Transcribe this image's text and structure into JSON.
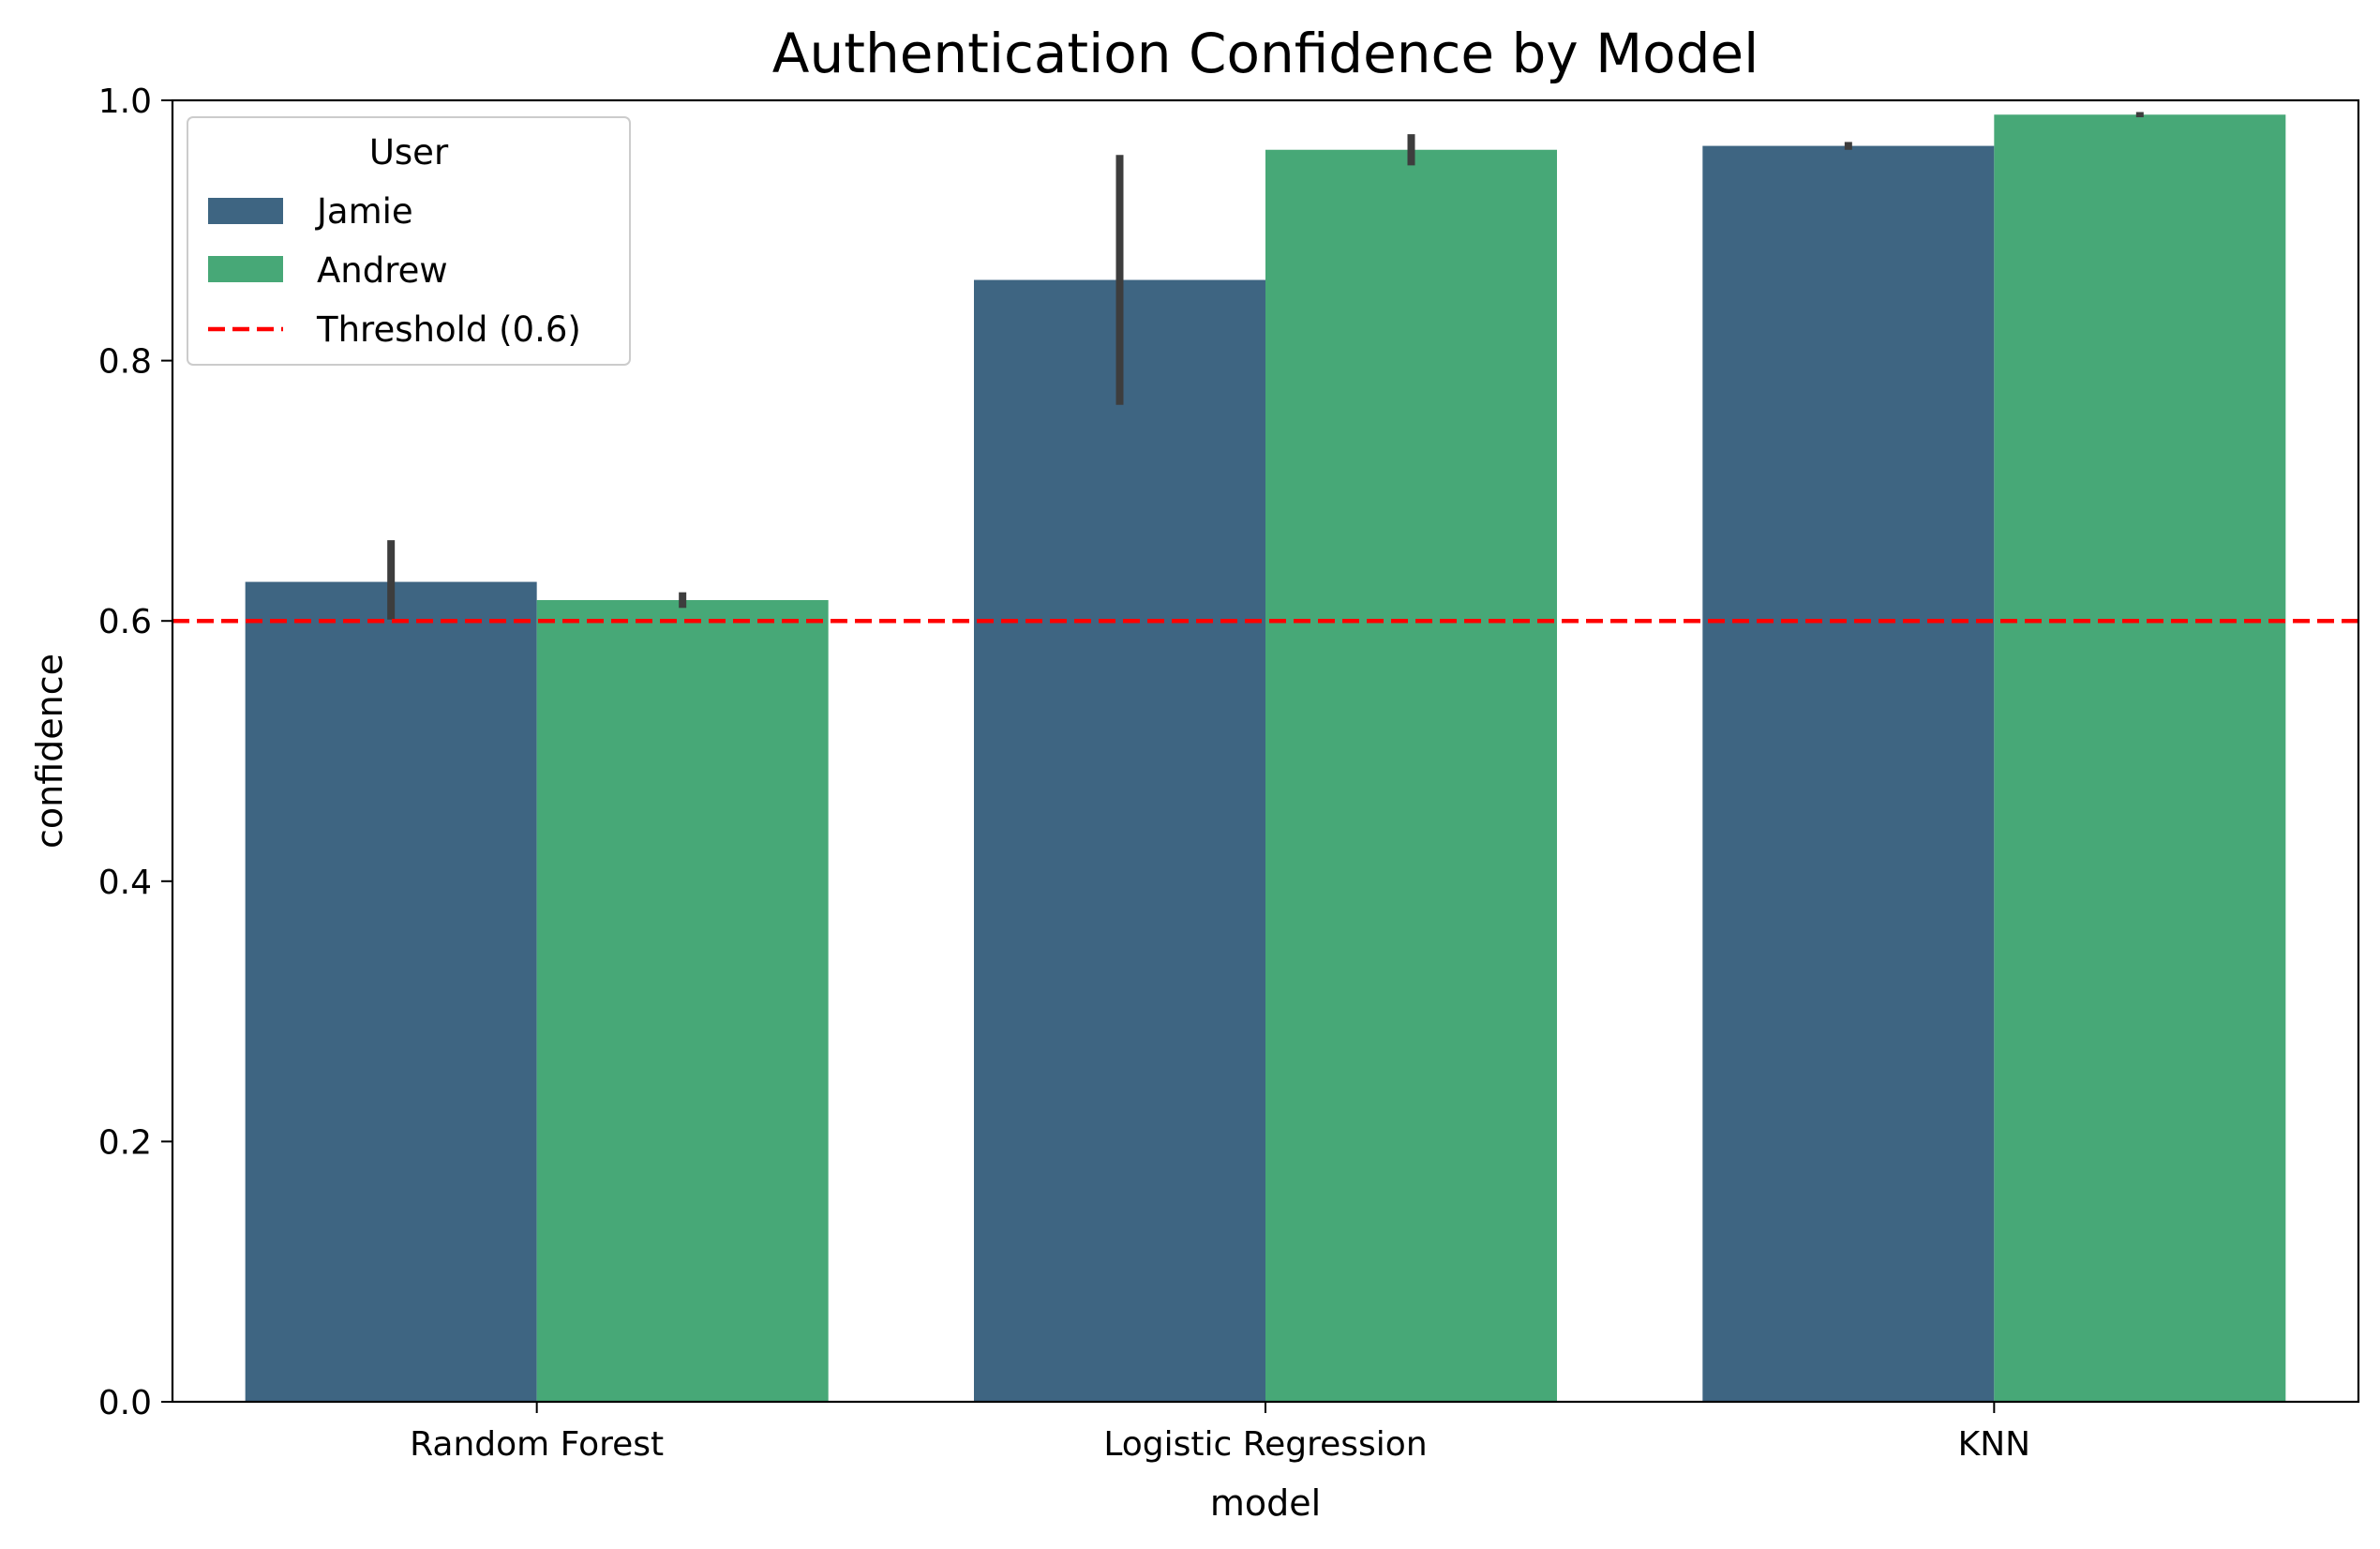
{
  "chart_data": {
    "type": "bar",
    "title": "Authentication Confidence by Model",
    "xlabel": "model",
    "ylabel": "confidence",
    "categories": [
      "Random Forest",
      "Logistic Regression",
      "KNN"
    ],
    "ylim": [
      0,
      1.0
    ],
    "yticks": [
      "0.0",
      "0.2",
      "0.4",
      "0.6",
      "0.8",
      "1.0"
    ],
    "series": [
      {
        "name": "Jamie",
        "color": "#3e6582",
        "values": [
          0.63,
          0.862,
          0.965
        ],
        "err_low": [
          0.601,
          0.766,
          0.962
        ],
        "err_high": [
          0.662,
          0.958,
          0.968
        ]
      },
      {
        "name": "Andrew",
        "color": "#47a877",
        "values": [
          0.616,
          0.962,
          0.989
        ],
        "err_low": [
          0.61,
          0.95,
          0.987
        ],
        "err_high": [
          0.622,
          0.974,
          0.991
        ]
      }
    ],
    "reference_line": {
      "label": "Threshold (0.6)",
      "value": 0.6,
      "color": "#ff0000",
      "style": "dashed"
    },
    "legend": {
      "title": "User",
      "placement": "upper-left"
    },
    "grid": false
  }
}
